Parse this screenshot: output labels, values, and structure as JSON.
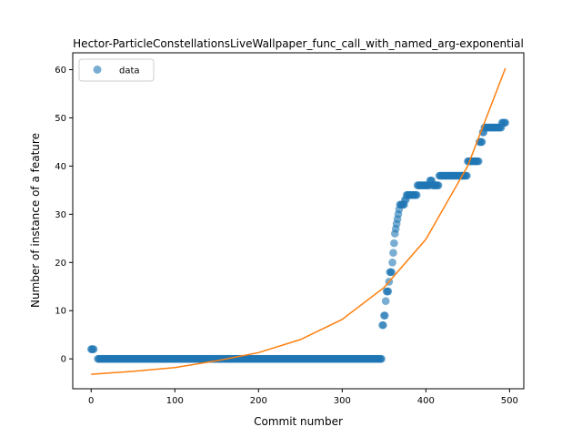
{
  "chart_data": {
    "type": "scatter",
    "title": "Hector-ParticleConstellationsLiveWallpaper_func_call_with_named_arg-exponential",
    "xlabel": "Commit number",
    "ylabel": "Number of instance of a feature",
    "xlim": [
      -22,
      517
    ],
    "ylim": [
      -6.2,
      63.5
    ],
    "xticks": [
      0,
      100,
      200,
      300,
      400,
      500
    ],
    "yticks": [
      0,
      10,
      20,
      30,
      40,
      50,
      60
    ],
    "grid": false,
    "legend": {
      "position": "top-left",
      "entries": [
        "data"
      ]
    },
    "colors": {
      "data": "#1f77b4",
      "fit": "#ff7f0e"
    },
    "series": [
      {
        "name": "data",
        "kind": "scatter",
        "runs": [
          [
            0,
            2,
            2
          ],
          [
            3,
            3,
            2
          ],
          [
            5,
            3,
            3
          ],
          [
            7,
            3,
            2
          ],
          [
            8,
            347,
            0
          ],
          [
            348,
            349,
            7
          ],
          [
            350,
            351,
            9
          ],
          [
            352,
            12
          ],
          [
            353,
            355,
            14
          ],
          [
            356,
            16
          ],
          [
            357,
            359,
            18
          ],
          [
            360,
            20
          ],
          [
            361,
            22
          ],
          [
            362,
            24
          ],
          [
            363,
            26
          ],
          [
            364,
            27
          ],
          [
            365,
            28
          ],
          [
            366,
            29
          ],
          [
            367,
            30
          ],
          [
            368,
            31
          ],
          [
            369,
            374,
            32
          ],
          [
            375,
            376,
            33
          ],
          [
            377,
            389,
            34
          ],
          [
            390,
            404,
            36
          ],
          [
            405,
            407,
            37
          ],
          [
            408,
            415,
            36
          ],
          [
            416,
            449,
            38
          ],
          [
            450,
            463,
            41
          ],
          [
            464,
            467,
            45
          ],
          [
            468,
            469,
            47
          ],
          [
            470,
            473,
            48
          ],
          [
            474,
            490,
            48
          ],
          [
            491,
            495,
            49
          ]
        ]
      },
      {
        "name": "",
        "kind": "line",
        "x": [
          0,
          50,
          100,
          150,
          200,
          250,
          300,
          350,
          400,
          450,
          495
        ],
        "y": [
          -3.2,
          -2.6,
          -1.8,
          -0.4,
          1.3,
          4.0,
          8.2,
          14.8,
          24.8,
          40.0,
          60.3
        ]
      }
    ]
  }
}
